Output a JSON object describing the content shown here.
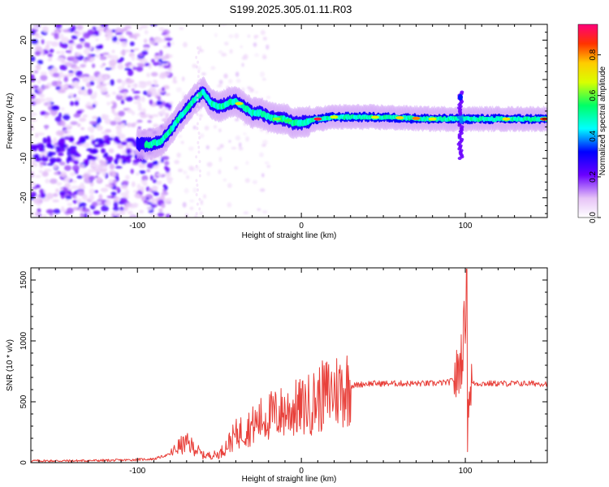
{
  "chart_data": [
    {
      "type": "heatmap",
      "title": "S199.2025.305.01.11.R03",
      "xlabel": "Height of straight line (km)",
      "ylabel": "Frequency (Hz)",
      "xlim": [
        -165,
        150
      ],
      "ylim": [
        -25,
        24
      ],
      "xticks": [
        -100,
        0,
        100
      ],
      "xtick_labels": [
        "-100",
        "0",
        "100"
      ],
      "yticks": [
        -20,
        -10,
        0,
        10,
        20
      ],
      "ytick_labels": [
        "-20",
        "-10",
        "0",
        "10",
        "20"
      ],
      "colorbar": {
        "label": "Normalized spectral amplitude",
        "range": [
          0,
          0.95
        ],
        "ticks": [
          0.0,
          0.2,
          0.4,
          0.6,
          0.8
        ],
        "tick_labels": [
          "0.0",
          "0.2",
          "0.4",
          "0.6",
          "0.8"
        ]
      },
      "ridge": {
        "height_km": [
          -100,
          -92,
          -85,
          -80,
          -75,
          -70,
          -65,
          -60,
          -55,
          -50,
          -45,
          -40,
          -35,
          -30,
          -25,
          -20,
          -15,
          -10,
          -5,
          0,
          10,
          20,
          40,
          60,
          80,
          90,
          100,
          120,
          150
        ],
        "frequency_hz": [
          -6.5,
          -6.5,
          -5.5,
          -3,
          0,
          2.5,
          5,
          7,
          4,
          3,
          4,
          4.5,
          3,
          1.5,
          1.5,
          0.5,
          0,
          0,
          -1,
          -1,
          0,
          0.5,
          0.5,
          0.3,
          0,
          0,
          0,
          0,
          0
        ]
      }
    },
    {
      "type": "line",
      "title": "",
      "xlabel": "Height of straight line (km)",
      "ylabel": "SNR (10 * v/v)",
      "xlim": [
        -165,
        150
      ],
      "ylim": [
        0,
        1600
      ],
      "xticks": [
        -100,
        0,
        100
      ],
      "xtick_labels": [
        "-100",
        "0",
        "100"
      ],
      "yticks": [
        0,
        500,
        1000,
        1500
      ],
      "ytick_labels": [
        "0",
        "500",
        "1000",
        "1500"
      ],
      "series": [
        {
          "name": "SNR",
          "color": "#e8403a",
          "x": [
            -165,
            -140,
            -110,
            -90,
            -80,
            -75,
            -70,
            -65,
            -60,
            -55,
            -50,
            -45,
            -40,
            -35,
            -30,
            -25,
            -20,
            -15,
            -10,
            -5,
            0,
            5,
            10,
            15,
            20,
            25,
            30,
            40,
            60,
            80,
            90,
            95,
            98,
            100,
            101,
            102,
            103,
            105,
            110,
            120,
            150
          ],
          "y": [
            15,
            15,
            20,
            30,
            70,
            130,
            160,
            120,
            60,
            60,
            70,
            150,
            230,
            270,
            300,
            350,
            380,
            400,
            420,
            440,
            450,
            480,
            520,
            560,
            590,
            610,
            630,
            650,
            650,
            650,
            660,
            700,
            900,
            1200,
            1580,
            400,
            660,
            650,
            650,
            650,
            650
          ]
        }
      ]
    }
  ]
}
